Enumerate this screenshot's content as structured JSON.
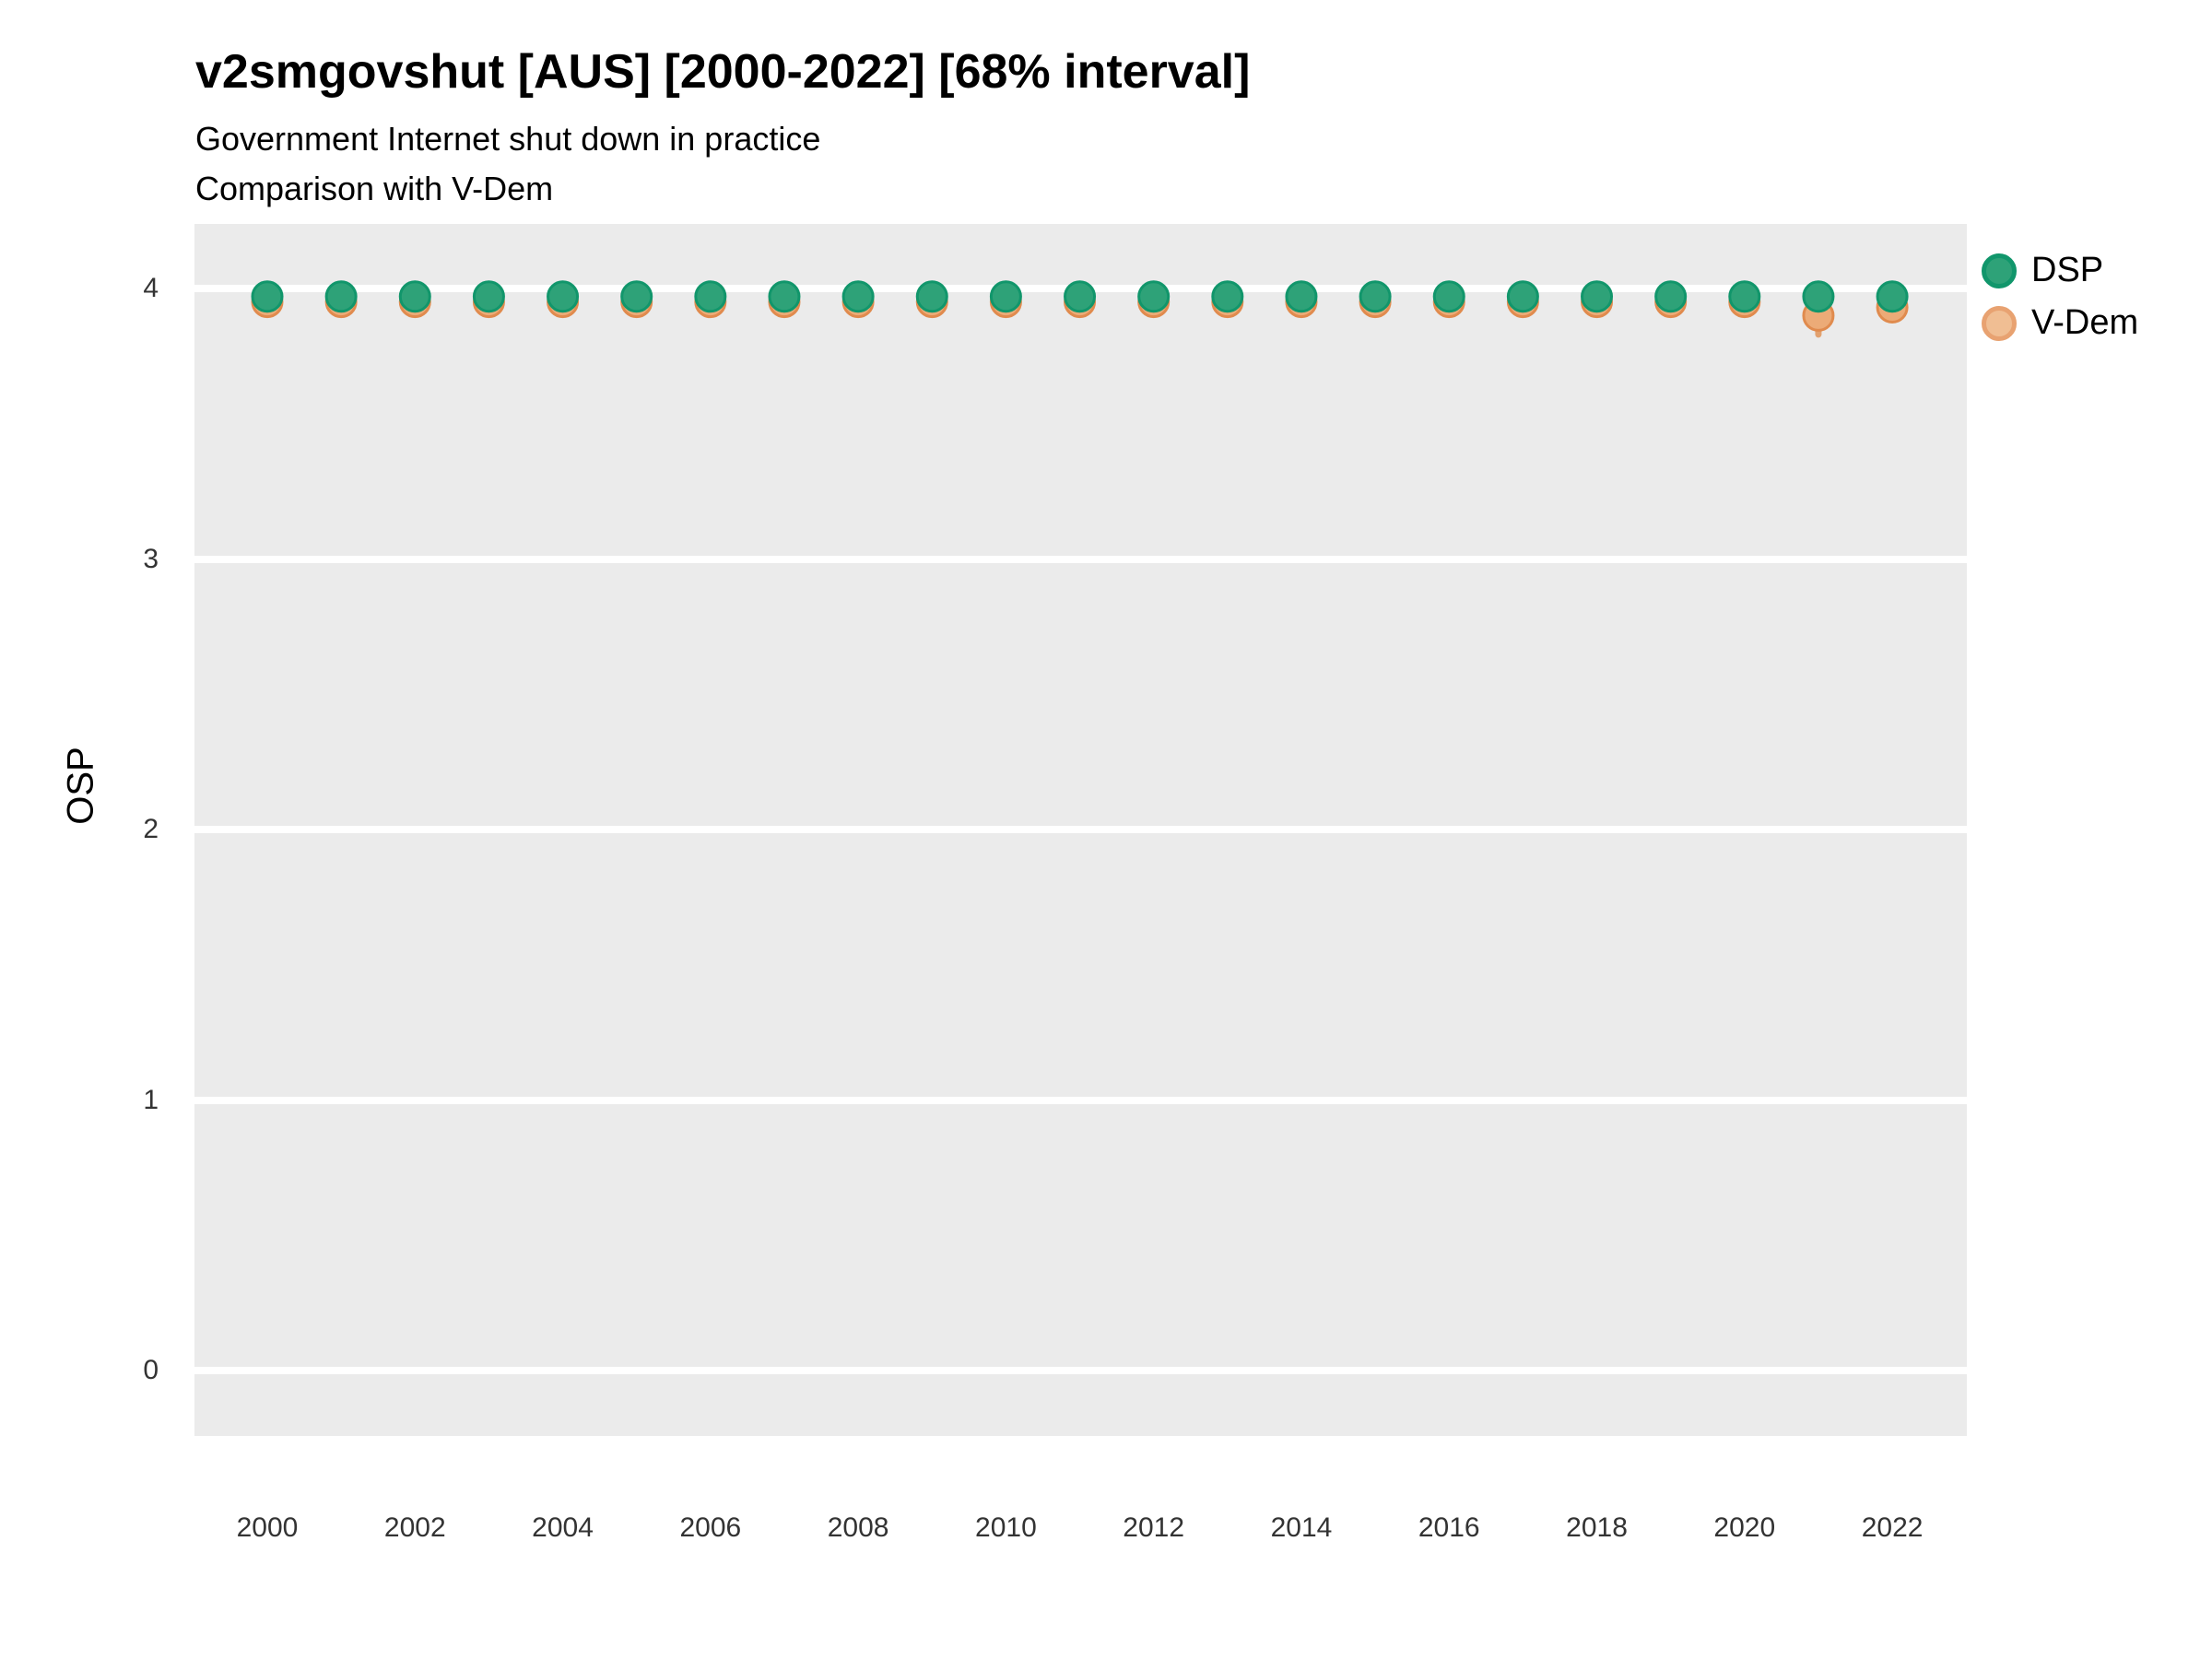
{
  "header": {
    "title": "v2smgovshut [AUS] [2000-2022] [68% interval]",
    "subtitle1": "Government Internet shut down in practice",
    "subtitle2": "Comparison with V-Dem"
  },
  "axes": {
    "y_title": "OSP",
    "y_ticks": [
      4,
      3,
      2,
      1,
      0
    ],
    "x_ticks": [
      2000,
      2002,
      2004,
      2006,
      2008,
      2010,
      2012,
      2014,
      2016,
      2018,
      2020,
      2022
    ]
  },
  "colors": {
    "panel_background": "#EBEBEB",
    "gridline": "#FFFFFF",
    "dsp_fill": "#2EA278",
    "dsp_stroke": "#11966B",
    "vdem_fill": "#ECAB77",
    "vdem_stroke": "#E08B4E",
    "interval_line": "#E29A62"
  },
  "legend": [
    {
      "label": "DSP",
      "fill": "#2EA278",
      "stroke": "#11966B"
    },
    {
      "label": "V-Dem",
      "fill": "#F0BE93",
      "stroke": "#E8A271"
    }
  ],
  "chart_data": {
    "type": "scatter",
    "title": "v2smgovshut [AUS] [2000-2022] [68% interval]",
    "subtitle": [
      "Government Internet shut down in practice",
      "Comparison with V-Dem"
    ],
    "xlabel": "",
    "ylabel": "OSP",
    "ylim": [
      0,
      4
    ],
    "interval": "68%",
    "grid": "major-horizontal-only",
    "legend_position": "right-top",
    "x": [
      2000,
      2001,
      2002,
      2003,
      2004,
      2005,
      2006,
      2007,
      2008,
      2009,
      2010,
      2011,
      2012,
      2013,
      2014,
      2015,
      2016,
      2017,
      2018,
      2019,
      2020,
      2021,
      2022
    ],
    "series": [
      {
        "name": "DSP",
        "values": [
          3.97,
          3.97,
          3.97,
          3.97,
          3.97,
          3.97,
          3.97,
          3.97,
          3.97,
          3.97,
          3.97,
          3.97,
          3.97,
          3.97,
          3.97,
          3.97,
          3.97,
          3.97,
          3.97,
          3.97,
          3.97,
          3.97,
          3.97
        ]
      },
      {
        "name": "V-Dem",
        "values": [
          3.95,
          3.95,
          3.95,
          3.95,
          3.95,
          3.95,
          3.95,
          3.95,
          3.95,
          3.95,
          3.95,
          3.95,
          3.95,
          3.95,
          3.95,
          3.95,
          3.95,
          3.95,
          3.95,
          3.95,
          3.95,
          3.9,
          3.93
        ],
        "interval_low": [
          null,
          null,
          null,
          null,
          null,
          null,
          null,
          null,
          null,
          null,
          null,
          null,
          null,
          null,
          null,
          null,
          null,
          null,
          null,
          null,
          null,
          3.83,
          null
        ],
        "interval_high": [
          null,
          null,
          null,
          null,
          null,
          null,
          null,
          null,
          null,
          null,
          null,
          null,
          null,
          null,
          null,
          null,
          null,
          null,
          null,
          null,
          null,
          3.97,
          null
        ]
      }
    ]
  }
}
